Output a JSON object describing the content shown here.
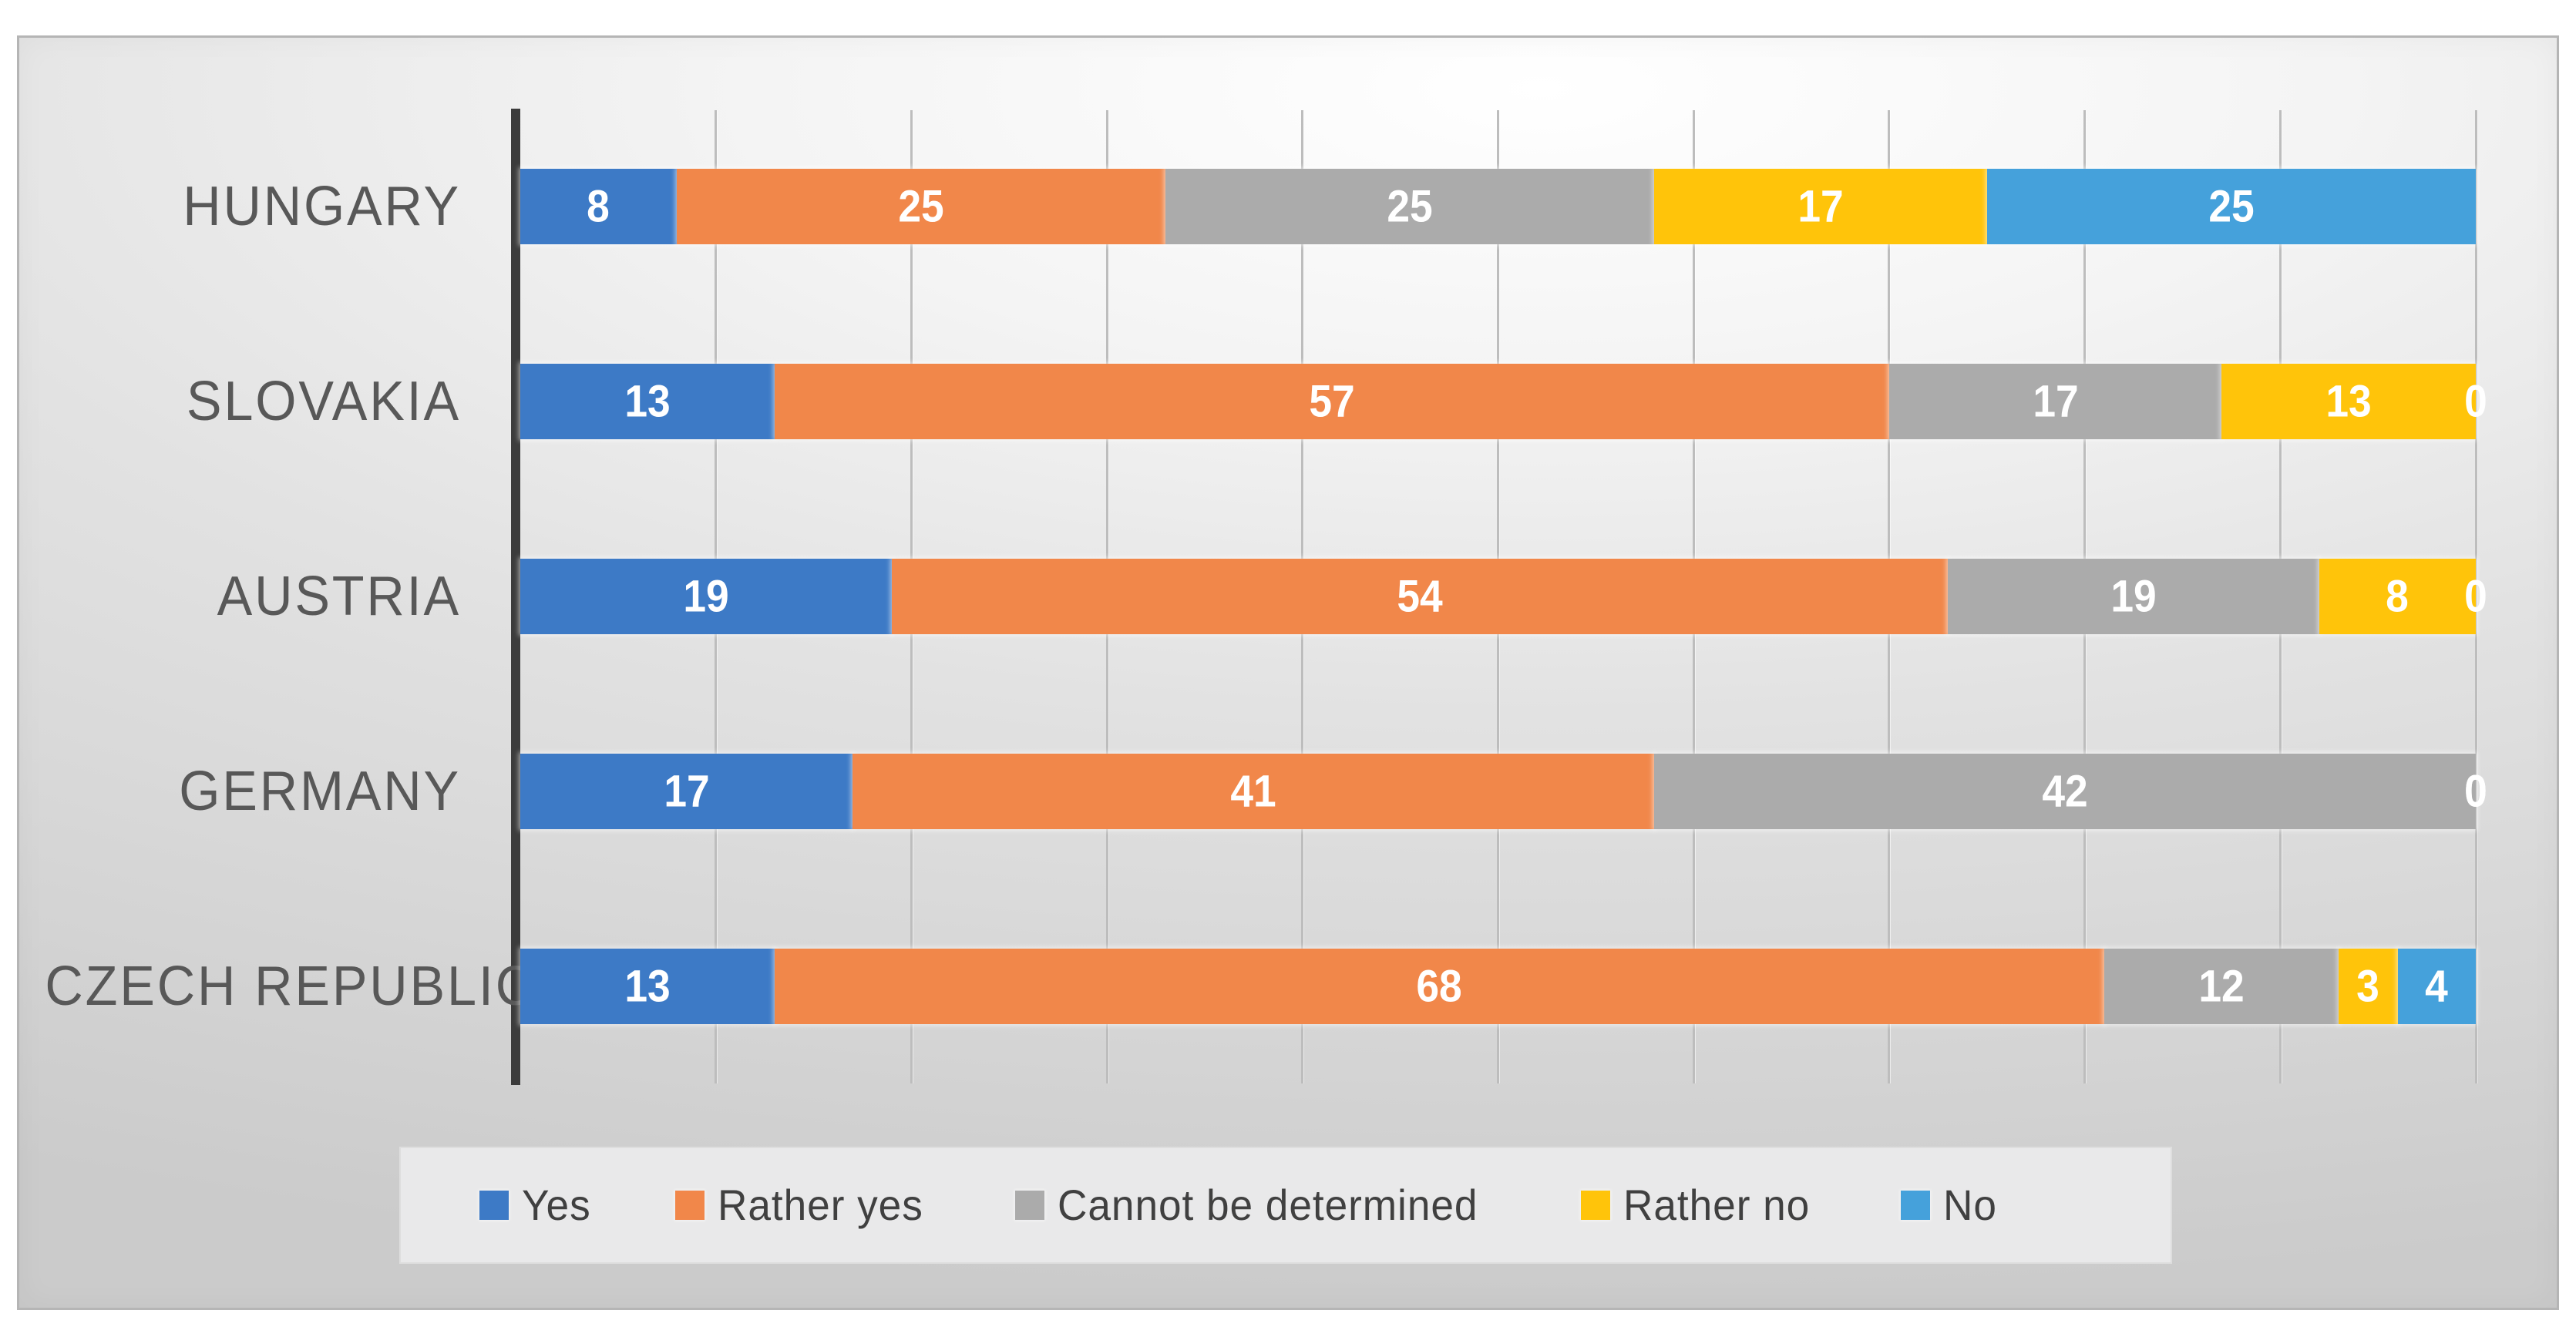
{
  "page": {
    "background_color": "#ffffff",
    "panel_border_color": "#b5b5b5"
  },
  "chart_data": {
    "type": "bar",
    "orientation": "horizontal",
    "stacked": true,
    "title": "",
    "xlabel": "",
    "ylabel": "",
    "xlim": [
      0,
      100
    ],
    "gridlines": {
      "show": true,
      "interval": 10,
      "color": "#bdbdbd"
    },
    "axis_line_color": "#3c3c3c",
    "category_label_color": "#585858",
    "data_labels": {
      "show": true,
      "color": "#ffffff"
    },
    "categories": [
      "HUNGARY",
      "SLOVAKIA",
      "AUSTRIA",
      "GERMANY",
      "CZECH REPUBLIC"
    ],
    "series": [
      {
        "name": "Yes",
        "color": "#3D7AC6",
        "values": [
          8,
          13,
          19,
          17,
          13
        ]
      },
      {
        "name": "Rather yes",
        "color": "#F1874A",
        "values": [
          25,
          57,
          54,
          41,
          68
        ]
      },
      {
        "name": "Cannot be determined",
        "color": "#ABABAB",
        "values": [
          25,
          17,
          19,
          42,
          12
        ]
      },
      {
        "name": "Rather no",
        "color": "#FFC40A",
        "values": [
          17,
          13,
          8,
          0,
          3
        ]
      },
      {
        "name": "No",
        "color": "#45A1DB",
        "values": [
          25,
          0,
          0,
          0,
          4
        ]
      }
    ],
    "legend": {
      "position": "bottom",
      "background": "#e9e9ea",
      "text_color": "#404040",
      "items": [
        "Yes",
        "Rather yes",
        "Cannot be determined",
        "Rather no",
        "No"
      ]
    }
  }
}
